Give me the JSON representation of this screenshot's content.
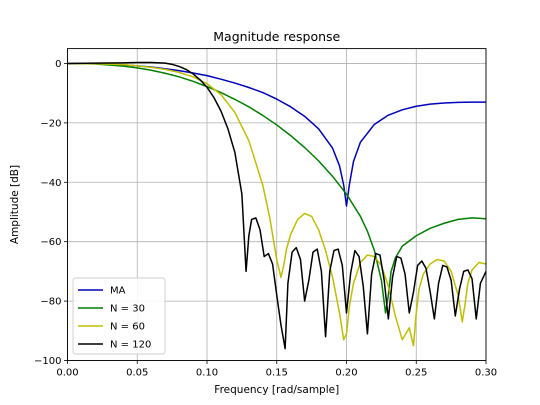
{
  "chart_data": {
    "type": "line",
    "title": "Magnitude response",
    "xlabel": "Frequency [rad/sample]",
    "ylabel": "Amplitude [dB]",
    "xlim": [
      0.0,
      0.3
    ],
    "ylim": [
      -100,
      5
    ],
    "xticks": [
      0.0,
      0.05,
      0.1,
      0.15,
      0.2,
      0.25,
      0.3
    ],
    "xtick_labels": [
      "0.00",
      "0.05",
      "0.10",
      "0.15",
      "0.20",
      "0.25",
      "0.30"
    ],
    "yticks": [
      0,
      -20,
      -40,
      -60,
      -80,
      -100
    ],
    "ytick_labels": [
      "0",
      "−20",
      "−40",
      "−60",
      "−80",
      "−100"
    ],
    "grid": true,
    "legend_position": "lower-left",
    "series": [
      {
        "name": "MA",
        "color": "#0000bf",
        "x": [
          0,
          0.01,
          0.02,
          0.03,
          0.04,
          0.05,
          0.06,
          0.07,
          0.08,
          0.09,
          0.1,
          0.11,
          0.12,
          0.13,
          0.14,
          0.15,
          0.16,
          0.17,
          0.18,
          0.19,
          0.195,
          0.198,
          0.2,
          0.202,
          0.205,
          0.21,
          0.22,
          0.23,
          0.24,
          0.25,
          0.26,
          0.27,
          0.28,
          0.29,
          0.3
        ],
        "y": [
          0,
          -0.03,
          -0.1,
          -0.3,
          -0.5,
          -0.8,
          -1.2,
          -1.8,
          -2.4,
          -3.2,
          -4.1,
          -5.3,
          -6.6,
          -8.1,
          -9.8,
          -12.0,
          -14.6,
          -17.8,
          -22.0,
          -28.5,
          -34.5,
          -41.0,
          -48.0,
          -41.0,
          -33.0,
          -26.5,
          -20.5,
          -17.4,
          -15.6,
          -14.4,
          -13.7,
          -13.3,
          -13.1,
          -13.0,
          -13.0
        ]
      },
      {
        "name": "N = 30",
        "color": "#007f00",
        "x": [
          0,
          0.01,
          0.02,
          0.03,
          0.04,
          0.05,
          0.06,
          0.07,
          0.08,
          0.09,
          0.1,
          0.11,
          0.12,
          0.13,
          0.14,
          0.15,
          0.16,
          0.17,
          0.18,
          0.19,
          0.2,
          0.21,
          0.215,
          0.22,
          0.225,
          0.228,
          0.23,
          0.232,
          0.235,
          0.24,
          0.25,
          0.26,
          0.27,
          0.28,
          0.29,
          0.3
        ],
        "y": [
          0,
          -0.05,
          -0.2,
          -0.5,
          -0.9,
          -1.5,
          -2.3,
          -3.3,
          -4.5,
          -6.0,
          -7.8,
          -9.8,
          -12.1,
          -14.6,
          -17.5,
          -20.7,
          -24.3,
          -28.3,
          -32.8,
          -38.0,
          -44.0,
          -51.5,
          -56.5,
          -63.0,
          -73.0,
          -84.0,
          -78.0,
          -70.0,
          -65.5,
          -61.5,
          -58.0,
          -55.5,
          -53.8,
          -52.5,
          -52.0,
          -52.3
        ]
      },
      {
        "name": "N = 60",
        "color": "#bfbf00",
        "x": [
          0,
          0.02,
          0.04,
          0.05,
          0.06,
          0.07,
          0.08,
          0.09,
          0.1,
          0.11,
          0.12,
          0.13,
          0.14,
          0.145,
          0.15,
          0.153,
          0.155,
          0.157,
          0.16,
          0.165,
          0.17,
          0.175,
          0.18,
          0.185,
          0.19,
          0.195,
          0.198,
          0.2,
          0.202,
          0.205,
          0.21,
          0.215,
          0.22,
          0.225,
          0.23,
          0.235,
          0.24,
          0.245,
          0.248,
          0.25,
          0.252,
          0.255,
          0.26,
          0.265,
          0.27,
          0.275,
          0.28,
          0.283,
          0.285,
          0.287,
          0.29,
          0.295,
          0.3
        ],
        "y": [
          0,
          -0.1,
          -0.4,
          -0.8,
          -1.3,
          -2.0,
          -3.0,
          -4.5,
          -6.8,
          -10.5,
          -16.5,
          -26.0,
          -41.0,
          -52.0,
          -66.0,
          -72.0,
          -68.0,
          -62.5,
          -57.5,
          -52.5,
          -50.5,
          -51.5,
          -56.0,
          -63.0,
          -72.0,
          -84.0,
          -93.0,
          -91.0,
          -82.0,
          -74.0,
          -67.0,
          -64.5,
          -65.0,
          -68.0,
          -75.0,
          -85.0,
          -93.0,
          -89.0,
          -95.0,
          -84.0,
          -76.0,
          -71.0,
          -67.5,
          -66.0,
          -66.5,
          -70.0,
          -78.0,
          -87.0,
          -81.0,
          -74.0,
          -69.5,
          -67.0,
          -67.5
        ]
      },
      {
        "name": "N = 120",
        "color": "#000000",
        "x": [
          0,
          0.02,
          0.04,
          0.05,
          0.06,
          0.07,
          0.075,
          0.08,
          0.085,
          0.09,
          0.095,
          0.1,
          0.105,
          0.11,
          0.115,
          0.12,
          0.125,
          0.128,
          0.13,
          0.132,
          0.135,
          0.138,
          0.141,
          0.144,
          0.147,
          0.15,
          0.153,
          0.156,
          0.158,
          0.161,
          0.164,
          0.167,
          0.17,
          0.173,
          0.176,
          0.179,
          0.182,
          0.185,
          0.188,
          0.191,
          0.194,
          0.197,
          0.2,
          0.203,
          0.206,
          0.209,
          0.212,
          0.215,
          0.218,
          0.221,
          0.224,
          0.227,
          0.23,
          0.233,
          0.236,
          0.239,
          0.242,
          0.245,
          0.248,
          0.251,
          0.254,
          0.257,
          0.26,
          0.263,
          0.266,
          0.269,
          0.272,
          0.275,
          0.278,
          0.281,
          0.284,
          0.287,
          0.29,
          0.293,
          0.296,
          0.3
        ],
        "y": [
          0,
          0.1,
          0.2,
          0.3,
          0.3,
          0.1,
          -0.3,
          -1.0,
          -2.0,
          -3.5,
          -5.5,
          -8.0,
          -11.5,
          -16.0,
          -22.0,
          -30.0,
          -44.0,
          -70.0,
          -58.0,
          -52.5,
          -52.0,
          -56.0,
          -65.0,
          -64.0,
          -67.5,
          -78.0,
          -88.0,
          -96.0,
          -74.0,
          -63.5,
          -62.0,
          -66.0,
          -80.0,
          -73.0,
          -63.5,
          -62.5,
          -70.0,
          -92.0,
          -70.0,
          -63.0,
          -62.5,
          -68.0,
          -84.0,
          -70.5,
          -63.0,
          -65.0,
          -75.0,
          -91.0,
          -71.0,
          -64.0,
          -64.5,
          -73.0,
          -86.0,
          -72.0,
          -65.0,
          -65.5,
          -71.0,
          -84.0,
          -77.0,
          -68.0,
          -66.5,
          -69.0,
          -77.0,
          -86.0,
          -74.0,
          -68.0,
          -68.5,
          -73.0,
          -85.0,
          -76.0,
          -70.0,
          -69.5,
          -72.5,
          -86.0,
          -74.0,
          -70.0
        ]
      }
    ]
  }
}
